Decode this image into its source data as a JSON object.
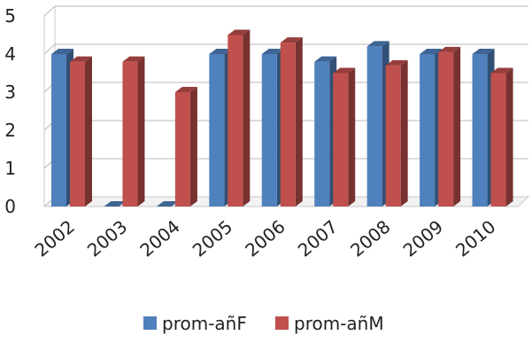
{
  "chart_data": {
    "type": "bar",
    "categories": [
      "2002",
      "2003",
      "2004",
      "2005",
      "2006",
      "2007",
      "2008",
      "2009",
      "2010"
    ],
    "series": [
      {
        "name": "prom-añF",
        "values": [
          4.0,
          0,
          0,
          4.0,
          4.0,
          3.8,
          4.2,
          4.0,
          4.0
        ],
        "color": "#4f81bd"
      },
      {
        "name": "prom-añM",
        "values": [
          3.8,
          3.8,
          3.0,
          4.5,
          4.3,
          3.5,
          3.7,
          4.05,
          3.5
        ],
        "color": "#c0504d"
      }
    ],
    "ylim": [
      0,
      5
    ],
    "y_ticks": [
      "0",
      "1",
      "2",
      "3",
      "4",
      "5"
    ],
    "grid": true,
    "legend_position": "bottom",
    "style": "3d-clustered-column",
    "title": "",
    "xlabel": "",
    "ylabel": ""
  }
}
